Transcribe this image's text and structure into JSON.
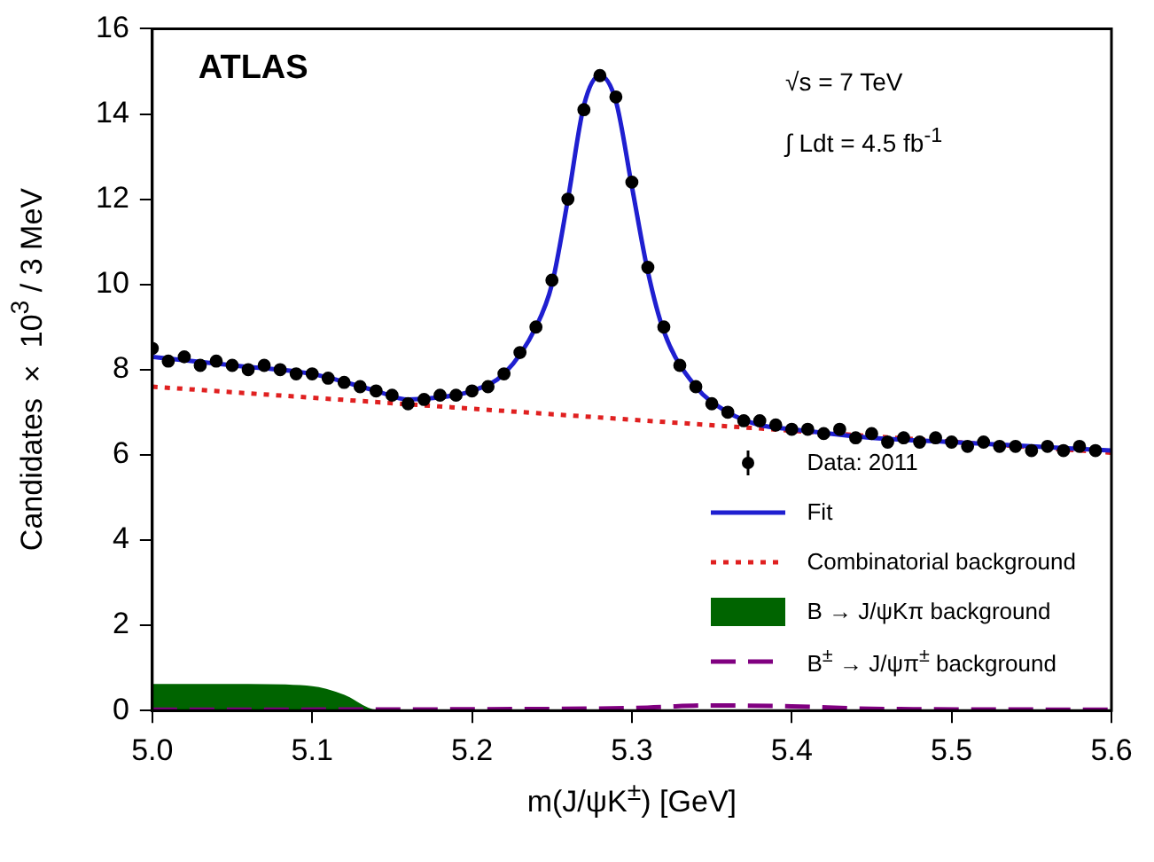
{
  "chart_data": {
    "type": "scatter",
    "xlabel": "m(J/ψK$^{±}$) [GeV]",
    "ylabel": "Candidates × 10$^{3}$ / 3 MeV",
    "annotations": [
      "ATLAS",
      "√s = 7 TeV",
      "∫ Ldt = 4.5 fb$^{-1}$"
    ],
    "xlim": [
      5.0,
      5.6
    ],
    "xticks": [
      {
        "value": 5.0,
        "label": "5.0"
      },
      5.1,
      5.2,
      5.3,
      5.4,
      5.5,
      5.6
    ],
    "ylim": [
      0,
      16
    ],
    "yticks": [
      0,
      2,
      4,
      6,
      8,
      10,
      12,
      14,
      16
    ],
    "legend": "bottom right",
    "series": [
      {
        "name": "Data: 2011",
        "marker": "circle",
        "color": "#000000",
        "x": [
          5.0,
          5.01,
          5.02,
          5.03,
          5.04,
          5.05,
          5.06,
          5.07,
          5.08,
          5.09,
          5.1,
          5.11,
          5.12,
          5.13,
          5.14,
          5.15,
          5.16,
          5.17,
          5.18,
          5.19,
          5.2,
          5.21,
          5.22,
          5.23,
          5.24,
          5.25,
          5.26,
          5.27,
          5.28,
          5.29,
          5.3,
          5.31,
          5.32,
          5.33,
          5.34,
          5.35,
          5.36,
          5.37,
          5.38,
          5.39,
          5.4,
          5.41,
          5.42,
          5.43,
          5.44,
          5.45,
          5.46,
          5.47,
          5.48,
          5.49,
          5.5,
          5.51,
          5.52,
          5.53,
          5.54,
          5.55,
          5.56,
          5.57,
          5.58,
          5.59
        ],
        "values": [
          8.5,
          8.2,
          8.3,
          8.1,
          8.2,
          8.1,
          8.0,
          8.1,
          8.0,
          7.9,
          7.9,
          7.8,
          7.7,
          7.6,
          7.5,
          7.4,
          7.2,
          7.3,
          7.4,
          7.4,
          7.5,
          7.6,
          7.9,
          8.4,
          9.0,
          10.1,
          12.0,
          14.1,
          14.9,
          14.4,
          12.4,
          10.4,
          9.0,
          8.1,
          7.6,
          7.2,
          7.0,
          6.8,
          6.8,
          6.7,
          6.6,
          6.6,
          6.5,
          6.6,
          6.4,
          6.5,
          6.3,
          6.4,
          6.3,
          6.4,
          6.3,
          6.2,
          6.3,
          6.2,
          6.2,
          6.1,
          6.2,
          6.1,
          6.2,
          6.1
        ]
      },
      {
        "name": "Fit",
        "type": "line",
        "line_style": "solid",
        "color": "#1f1fd0",
        "x": [
          5.0,
          5.05,
          5.1,
          5.14,
          5.16,
          5.18,
          5.2,
          5.22,
          5.24,
          5.25,
          5.26,
          5.27,
          5.28,
          5.29,
          5.3,
          5.31,
          5.32,
          5.34,
          5.36,
          5.38,
          5.4,
          5.45,
          5.5,
          5.55,
          5.6
        ],
        "values": [
          8.3,
          8.1,
          7.9,
          7.5,
          7.3,
          7.35,
          7.5,
          7.9,
          9.0,
          10.0,
          12.0,
          14.2,
          14.9,
          14.3,
          12.3,
          10.3,
          8.9,
          7.6,
          7.0,
          6.7,
          6.6,
          6.4,
          6.3,
          6.2,
          6.1
        ]
      },
      {
        "name": "Combinatorial background",
        "type": "line",
        "line_style": "dotted",
        "color": "#e02020",
        "x": [
          5.0,
          5.6
        ],
        "values": [
          7.6,
          6.05
        ]
      },
      {
        "name": "B → J/ψKπ background",
        "type": "area",
        "color": "#006400",
        "x": [
          5.0,
          5.06,
          5.1,
          5.12,
          5.14,
          5.6
        ],
        "values": [
          0.6,
          0.6,
          0.55,
          0.35,
          0,
          0
        ]
      },
      {
        "name": "B$^{±}$ → J/ψπ$^{±}$ background",
        "type": "line",
        "line_style": "dashed",
        "color": "#800080",
        "x": [
          5.0,
          5.2,
          5.3,
          5.35,
          5.4,
          5.45,
          5.6
        ],
        "values": [
          0.02,
          0.03,
          0.06,
          0.12,
          0.1,
          0.04,
          0.02
        ]
      }
    ]
  }
}
